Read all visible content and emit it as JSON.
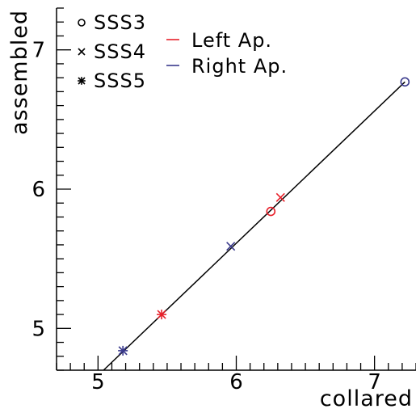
{
  "chart_data": {
    "type": "scatter",
    "xlabel": "collared",
    "ylabel": "assembled",
    "xlim": [
      4.7,
      7.3
    ],
    "ylim": [
      4.7,
      7.3
    ],
    "x_ticks": [
      "5",
      "6",
      "7"
    ],
    "y_ticks": [
      "5",
      "6",
      "7"
    ],
    "grid": false,
    "marker_legend": [
      {
        "symbol": "circle",
        "label": "SSS3"
      },
      {
        "symbol": "cross",
        "label": "SSS4"
      },
      {
        "symbol": "star",
        "label": "SSS5"
      }
    ],
    "color_legend": [
      {
        "label": "Left Ap.",
        "color": "#e8202a"
      },
      {
        "label": "Right Ap.",
        "color": "#3a3a8c"
      }
    ],
    "series": [
      {
        "magnet": "SSS3",
        "aperture": "Left Ap.",
        "marker": "circle",
        "x": 6.25,
        "y": 5.84
      },
      {
        "magnet": "SSS3",
        "aperture": "Right Ap.",
        "marker": "circle",
        "x": 7.22,
        "y": 6.77
      },
      {
        "magnet": "SSS4",
        "aperture": "Left Ap.",
        "marker": "cross",
        "x": 6.32,
        "y": 5.94
      },
      {
        "magnet": "SSS4",
        "aperture": "Right Ap.",
        "marker": "cross",
        "x": 5.96,
        "y": 5.59
      },
      {
        "magnet": "SSS5",
        "aperture": "Left Ap.",
        "marker": "star",
        "x": 5.46,
        "y": 5.1
      },
      {
        "magnet": "SSS5",
        "aperture": "Right Ap.",
        "marker": "star",
        "x": 5.18,
        "y": 4.84
      }
    ],
    "fit_line": {
      "x": [
        5.04,
        7.22
      ],
      "y": [
        4.7,
        6.77
      ]
    }
  }
}
